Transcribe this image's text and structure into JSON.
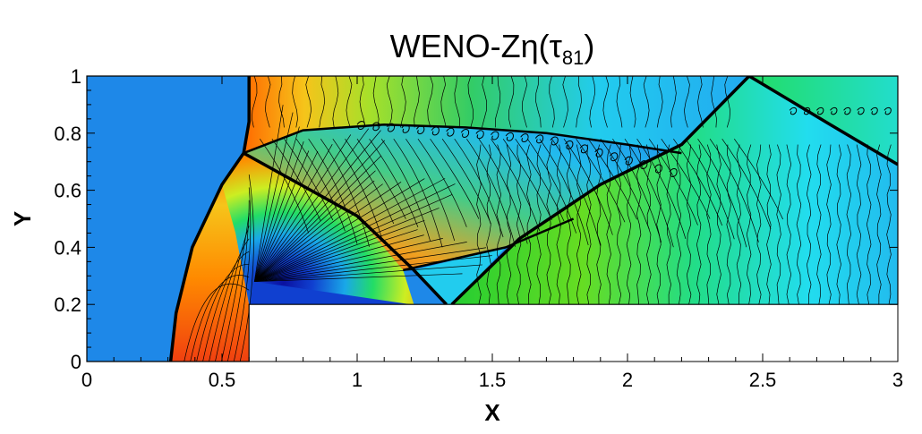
{
  "chart_data": {
    "type": "heatmap",
    "title": "WENO-Zη(τ81)",
    "title_parts": {
      "main": "WENO-Zη(τ",
      "subscript": "81",
      "close": ")"
    },
    "xlabel": "X",
    "ylabel": "Y",
    "xlim": [
      0,
      3
    ],
    "ylim": [
      0,
      1
    ],
    "x_ticks": [
      0,
      0.5,
      1,
      1.5,
      2,
      2.5,
      3
    ],
    "x_tick_labels": [
      "0",
      "0.5",
      "1",
      "1.5",
      "2",
      "2.5",
      "3"
    ],
    "y_ticks": [
      0,
      0.2,
      0.4,
      0.6,
      0.8,
      1
    ],
    "y_tick_labels": [
      "0",
      "0.2",
      "0.4",
      "0.6",
      "0.8",
      "1"
    ],
    "step": {
      "x_start": 0.6,
      "height": 0.2
    },
    "bow_shock": [
      [
        0.31,
        0
      ],
      [
        0.33,
        0.17
      ],
      [
        0.39,
        0.4
      ],
      [
        0.5,
        0.62
      ],
      [
        0.58,
        0.73
      ],
      [
        0.6,
        0.84
      ],
      [
        0.6,
        1.0
      ]
    ],
    "reflected_shock": [
      [
        0.58,
        0.73
      ],
      [
        1.0,
        0.51
      ],
      [
        1.21,
        0.32
      ],
      [
        1.33,
        0.2
      ]
    ],
    "slip_line": [
      [
        0.58,
        0.73
      ],
      [
        0.8,
        0.81
      ],
      [
        1.1,
        0.83
      ],
      [
        1.4,
        0.82
      ],
      [
        1.7,
        0.8
      ],
      [
        2.0,
        0.76
      ],
      [
        2.2,
        0.73
      ]
    ],
    "second_shock": [
      [
        1.35,
        0.2
      ],
      [
        1.6,
        0.43
      ],
      [
        1.9,
        0.62
      ],
      [
        2.2,
        0.76
      ],
      [
        2.45,
        1.0
      ]
    ],
    "third_shock": [
      [
        2.45,
        1.0
      ],
      [
        2.75,
        0.83
      ],
      [
        3.0,
        0.69
      ]
    ],
    "mach_stem": [
      [
        1.17,
        0.32
      ],
      [
        1.55,
        0.4
      ],
      [
        1.8,
        0.5
      ]
    ],
    "colors": {
      "freestream": "#1e88e8",
      "post_shock_hot": "#ff6a00",
      "stagnation": "#f04010",
      "mid_green": "#55cc33",
      "cyan": "#22ccee",
      "dark_blue": "#1040d0",
      "contour_line": "#000000",
      "background": "#ffffff"
    }
  }
}
